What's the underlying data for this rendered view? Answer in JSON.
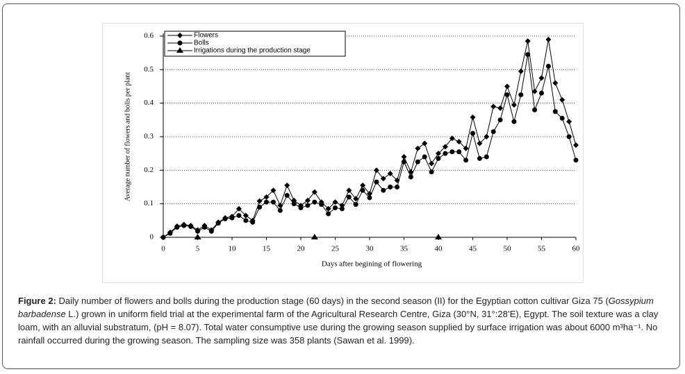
{
  "chart_data": {
    "type": "line",
    "xlabel": "Days after begining of flowering",
    "ylabel": "Average number of flowers and bolls per plant",
    "x": [
      0,
      1,
      2,
      3,
      4,
      5,
      6,
      7,
      8,
      9,
      10,
      11,
      12,
      13,
      14,
      15,
      16,
      17,
      18,
      19,
      20,
      21,
      22,
      23,
      24,
      25,
      26,
      27,
      28,
      29,
      30,
      31,
      32,
      33,
      34,
      35,
      36,
      37,
      38,
      39,
      40,
      41,
      42,
      43,
      44,
      45,
      46,
      47,
      48,
      49,
      50,
      51,
      52,
      53,
      54,
      55,
      56,
      57,
      58,
      59,
      60
    ],
    "series": [
      {
        "name": "Flowers",
        "color": "#000000",
        "marker": "diamond",
        "values": [
          0,
          0.015,
          0.033,
          0.038,
          0.035,
          0.022,
          0.035,
          0.022,
          0.045,
          0.058,
          0.062,
          0.085,
          0.065,
          0.05,
          0.108,
          0.12,
          0.14,
          0.095,
          0.155,
          0.11,
          0.095,
          0.11,
          0.135,
          0.105,
          0.085,
          0.105,
          0.095,
          0.14,
          0.115,
          0.155,
          0.13,
          0.2,
          0.175,
          0.19,
          0.17,
          0.24,
          0.195,
          0.265,
          0.28,
          0.22,
          0.25,
          0.27,
          0.295,
          0.285,
          0.265,
          0.358,
          0.28,
          0.3,
          0.39,
          0.385,
          0.45,
          0.395,
          0.495,
          0.585,
          0.435,
          0.475,
          0.59,
          0.46,
          0.41,
          0.345,
          0.275
        ]
      },
      {
        "name": "Bolls",
        "color": "#000000",
        "marker": "circle",
        "values": [
          0,
          0.012,
          0.03,
          0.035,
          0.032,
          0.018,
          0.03,
          0.018,
          0.042,
          0.055,
          0.058,
          0.065,
          0.05,
          0.045,
          0.09,
          0.105,
          0.105,
          0.08,
          0.125,
          0.1,
          0.088,
          0.095,
          0.105,
          0.098,
          0.07,
          0.088,
          0.085,
          0.12,
          0.098,
          0.14,
          0.118,
          0.165,
          0.14,
          0.15,
          0.15,
          0.225,
          0.18,
          0.225,
          0.24,
          0.195,
          0.235,
          0.25,
          0.255,
          0.255,
          0.23,
          0.31,
          0.235,
          0.24,
          0.315,
          0.35,
          0.425,
          0.345,
          0.425,
          0.545,
          0.38,
          0.43,
          0.51,
          0.375,
          0.355,
          0.3,
          0.23
        ]
      },
      {
        "name": "Irrigations during the production stage",
        "color": "#000000",
        "marker": "triangle",
        "x": [
          5,
          22,
          40
        ],
        "values": [
          0,
          0,
          0
        ]
      }
    ],
    "xlim": [
      0,
      60
    ],
    "xticks": [
      0,
      5,
      10,
      15,
      20,
      25,
      30,
      35,
      40,
      45,
      50,
      55,
      60
    ],
    "ylim": [
      0,
      0.6
    ],
    "yticks": [
      0,
      0.1,
      0.2,
      0.3,
      0.4,
      0.5,
      0.6
    ],
    "grid": true,
    "legend": "top-left"
  },
  "caption": {
    "label": "Figure 2:",
    "text1": " Daily number of flowers and bolls during the production stage (60 days) in the second season (II) for the Egyptian cotton cultivar Giza 75 (",
    "species": "Gossypium barbadense",
    "text2": " L.) grown in uniform field trial at the experimental farm of the Agricultural Research Centre, Giza (30°N, 31°:28’E), Egypt. The soil texture was a clay loam, with an alluvial substratum, (pH = 8.07). Total water consumptive use during the growing season supplied by surface irrigation was about 6000 m³hа⁻¹. No rainfall occurred during the growing season. The sampling size was 358 plants (Sawan et al. 1999)."
  }
}
